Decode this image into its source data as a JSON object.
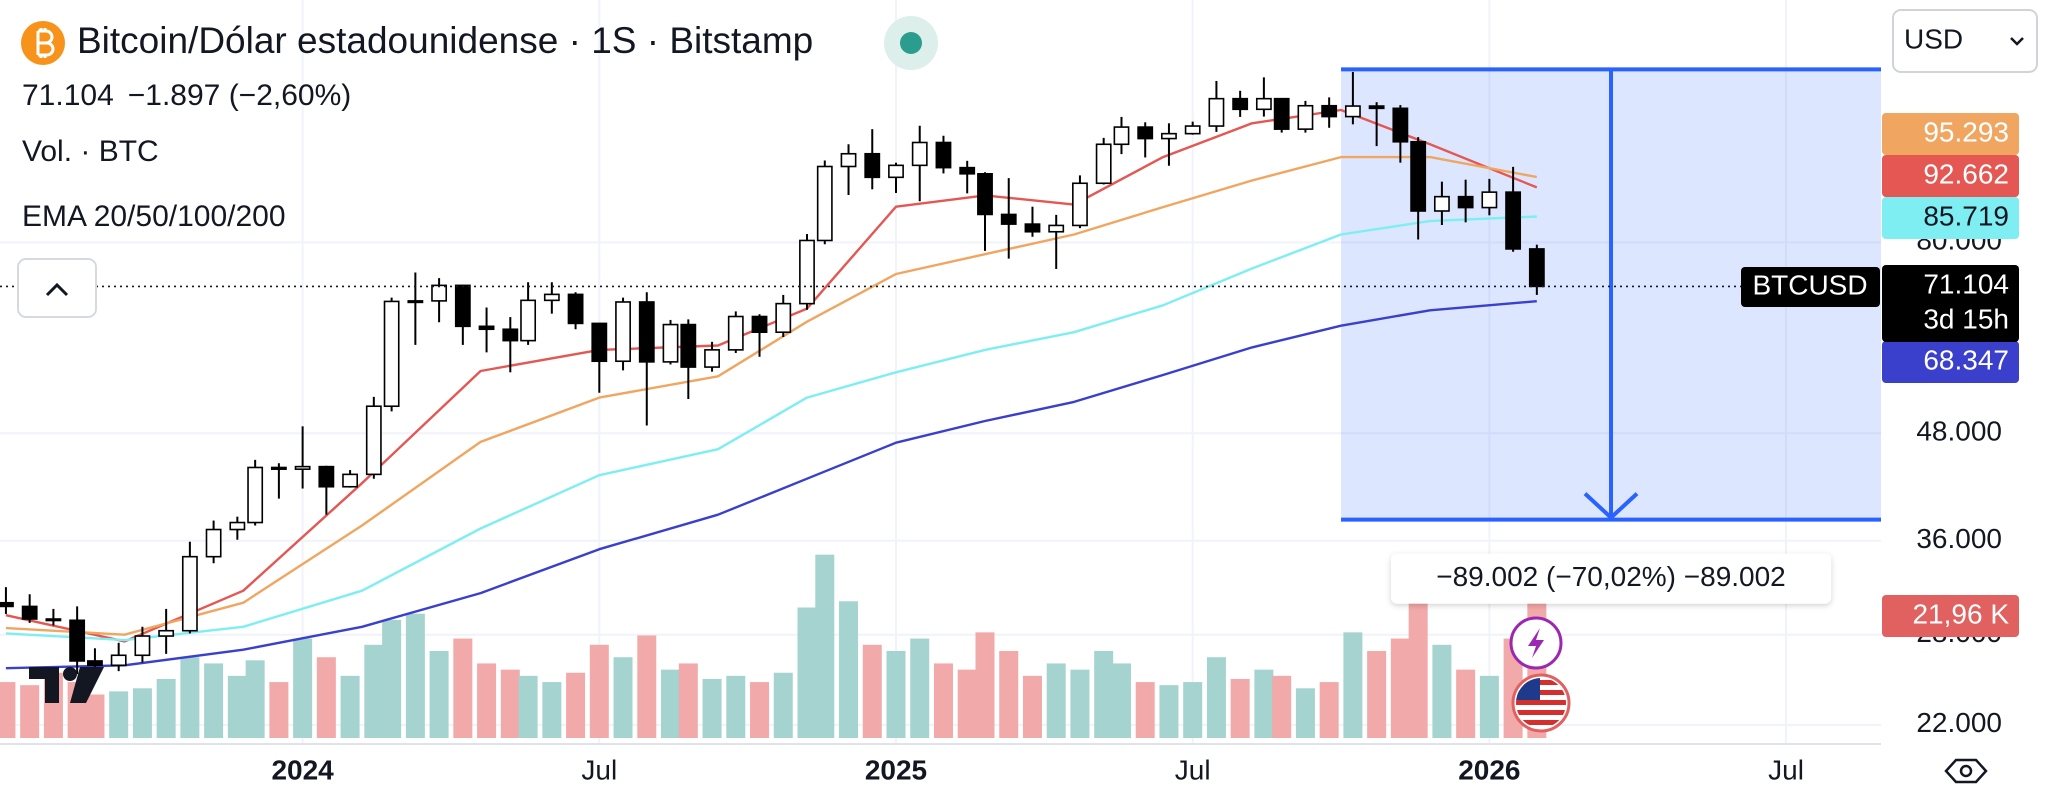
{
  "chart_data": {
    "type": "candlestick",
    "title": "Bitcoin/Dólar estadounidense · 1S · Bitstamp",
    "last_price_label": "71.104",
    "change_label": "−1.897 (−2,60%)",
    "volume_title": "Vol. · BTC",
    "indicator_title": "EMA 20/50/100/200",
    "currency": "USD",
    "symbol": "BTCUSD",
    "countdown": "3d 15h",
    "x": [
      2023.5,
      2023.54,
      2023.58,
      2023.62,
      2023.65,
      2023.69,
      2023.73,
      2023.77,
      2023.81,
      2023.85,
      2023.89,
      2023.92,
      2023.96,
      2024,
      2024.04,
      2024.08,
      2024.12,
      2024.15,
      2024.19,
      2024.23,
      2024.27,
      2024.31,
      2024.35,
      2024.38,
      2024.42,
      2024.46,
      2024.5,
      2024.54,
      2024.58,
      2024.62,
      2024.65,
      2024.69,
      2024.73,
      2024.77,
      2024.81,
      2024.85,
      2024.88,
      2024.92,
      2024.96,
      2025,
      2025.04,
      2025.08,
      2025.12,
      2025.15,
      2025.19,
      2025.23,
      2025.27,
      2025.31,
      2025.35,
      2025.38,
      2025.42,
      2025.46,
      2025.5,
      2025.54,
      2025.58,
      2025.62,
      2025.65,
      2025.69,
      2025.73,
      2025.77,
      2025.81,
      2025.85,
      2025.88,
      2025.92,
      2025.96,
      2026,
      2026.04,
      2026.08
    ],
    "open": [
      30500,
      30200,
      29200,
      29100,
      26100,
      25800,
      26500,
      27900,
      28300,
      34500,
      37100,
      37800,
      43800,
      43600,
      43900,
      41600,
      43000,
      51600,
      68300,
      68400,
      71300,
      63900,
      63400,
      61500,
      68500,
      69600,
      64400,
      58200,
      68200,
      58100,
      64200,
      57300,
      60000,
      65600,
      62900,
      67900,
      80400,
      98000,
      101400,
      95200,
      98300,
      104500,
      97700,
      96100,
      86200,
      84000,
      82300,
      83700,
      93700,
      104000,
      108900,
      105600,
      107000,
      109200,
      117500,
      114200,
      117500,
      108300,
      115300,
      112000,
      115200,
      114500,
      104700,
      87000,
      90400,
      87800,
      91500,
      78600
    ],
    "high": [
      31800,
      31200,
      30000,
      30200,
      27000,
      27400,
      28600,
      30000,
      35900,
      38000,
      38400,
      44700,
      44300,
      48900,
      44000,
      43500,
      52900,
      69000,
      73800,
      72700,
      71400,
      67200,
      65500,
      71900,
      71900,
      70000,
      64500,
      69000,
      70000,
      65000,
      65100,
      61300,
      66500,
      66000,
      69500,
      81800,
      99600,
      104000,
      108300,
      99000,
      109300,
      106400,
      99500,
      96500,
      95000,
      88000,
      86100,
      95700,
      105800,
      111900,
      110300,
      110000,
      110500,
      123200,
      120000,
      124400,
      117600,
      116800,
      117900,
      126200,
      116400,
      115500,
      106000,
      94100,
      94600,
      94800,
      97900,
      79500
    ],
    "low": [
      29600,
      28900,
      28700,
      25200,
      25300,
      25400,
      26000,
      26600,
      28100,
      33900,
      36100,
      37500,
      40300,
      41400,
      38600,
      41500,
      42500,
      50900,
      60800,
      64600,
      60800,
      59600,
      56500,
      60800,
      66100,
      63400,
      53500,
      56800,
      49000,
      57700,
      52600,
      56600,
      59500,
      58900,
      62100,
      66800,
      79600,
      90800,
      92200,
      91300,
      89300,
      96200,
      91200,
      78200,
      76600,
      81200,
      74500,
      83100,
      93400,
      101300,
      100400,
      98200,
      106700,
      107500,
      111900,
      112000,
      107300,
      107300,
      108700,
      109700,
      103500,
      99000,
      80600,
      83800,
      84400,
      86000,
      78000,
      69500
    ],
    "close": [
      30200,
      29200,
      29100,
      26100,
      25800,
      26500,
      27900,
      28300,
      34500,
      37100,
      37800,
      43800,
      43600,
      43900,
      41600,
      43000,
      51600,
      68300,
      68400,
      71300,
      63900,
      63400,
      61500,
      68500,
      69600,
      64400,
      58200,
      68200,
      58100,
      64200,
      57300,
      60000,
      65600,
      62900,
      67900,
      80400,
      98000,
      101400,
      95200,
      98300,
      104500,
      97700,
      96100,
      86200,
      84000,
      82300,
      83700,
      93700,
      104000,
      108900,
      105600,
      107000,
      109200,
      117500,
      114200,
      117500,
      108300,
      115300,
      112000,
      115200,
      114500,
      104700,
      87000,
      90400,
      87800,
      91500,
      78600,
      71104
    ],
    "volume": [
      9000,
      8500,
      10500,
      9000,
      7000,
      7500,
      8000,
      9500,
      13000,
      12000,
      10000,
      12500,
      9000,
      16000,
      13000,
      10000,
      15000,
      19000,
      20000,
      14000,
      16000,
      12000,
      11000,
      10000,
      9000,
      10500,
      15000,
      13000,
      16500,
      11000,
      12000,
      9500,
      10000,
      9000,
      10500,
      21000,
      29500,
      22000,
      15000,
      14000,
      16000,
      12000,
      11000,
      17000,
      14000,
      10000,
      12000,
      11000,
      14000,
      12000,
      9000,
      8500,
      9000,
      13000,
      9500,
      11000,
      10000,
      8000,
      9000,
      17000,
      14000,
      16000,
      22000,
      15000,
      11000,
      10000,
      16000,
      21960
    ],
    "volume_label": "21,96 K",
    "colors": {
      "up_body": "#ffffff",
      "down_body": "#000000",
      "wick": "#000000",
      "volume_up": "#a5d3cf",
      "volume_down": "#f2a9a9",
      "volume_box": "#e0615f"
    },
    "series": [
      {
        "color": "#e45752",
        "x": [
          2023.5,
          2023.7,
          2023.9,
          2024.1,
          2024.3,
          2024.5,
          2024.7,
          2024.85,
          2025,
          2025.15,
          2025.3,
          2025.45,
          2025.6,
          2025.75,
          2025.9,
          2026.08
        ],
        "values": [
          29500,
          27500,
          31500,
          42000,
          56700,
          60000,
          60700,
          67000,
          88000,
          90700,
          88500,
          100500,
          110000,
          114000,
          104000,
          92662
        ],
        "value_label": "92.662"
      },
      {
        "color": "#f0a660",
        "x": [
          2023.5,
          2023.7,
          2023.9,
          2024.1,
          2024.3,
          2024.5,
          2024.7,
          2024.85,
          2025,
          2025.15,
          2025.3,
          2025.45,
          2025.6,
          2025.75,
          2025.9,
          2026.08
        ],
        "values": [
          28500,
          28000,
          30500,
          37500,
          46900,
          52800,
          55900,
          64700,
          73500,
          77500,
          81700,
          87900,
          94400,
          100500,
          100500,
          95293
        ],
        "value_label": "95.293"
      },
      {
        "color": "#7eeef3",
        "x": [
          2023.5,
          2023.7,
          2023.9,
          2024.1,
          2024.3,
          2024.5,
          2024.7,
          2024.85,
          2025,
          2025.15,
          2025.3,
          2025.45,
          2025.6,
          2025.75,
          2025.9,
          2026.08
        ],
        "values": [
          28100,
          27600,
          28600,
          31500,
          37200,
          42900,
          46000,
          52800,
          56500,
          60000,
          62900,
          67600,
          74600,
          81700,
          84700,
          85719
        ],
        "value_label": "85.719"
      },
      {
        "color": "#3a3fcc",
        "x": [
          2023.5,
          2023.7,
          2023.9,
          2024.1,
          2024.3,
          2024.5,
          2024.7,
          2024.85,
          2025,
          2025.15,
          2025.3,
          2025.45,
          2025.6,
          2025.75,
          2025.9,
          2026.08
        ],
        "values": [
          25600,
          25800,
          26900,
          28600,
          31300,
          35200,
          38600,
          42500,
          46800,
          49600,
          52200,
          56100,
          60400,
          64000,
          66700,
          68347
        ],
        "value_label": "68.347"
      }
    ],
    "measure": {
      "x": [
        2025.75,
        2026.66
      ],
      "from": 127100,
      "to": 38098,
      "label": "−89.002 (−70,02%) −89.002",
      "color": "#2962ff",
      "fill": "rgba(41,98,255,0.16)"
    },
    "xlim": [
      2023.49,
      2026.66
    ],
    "xticks": [
      2024,
      {
        "value": 2024.5,
        "label": "Jul"
      },
      2025,
      {
        "value": 2025.5,
        "label": "Jul"
      },
      2026,
      {
        "value": 2026.5,
        "label": "Jul"
      }
    ],
    "ylim": [
      20900,
      153000
    ],
    "yticks": [
      {
        "value": 22000,
        "label": "22.000"
      },
      {
        "value": 28000,
        "label": "28.000"
      },
      {
        "value": 36000,
        "label": "36.000"
      },
      {
        "value": 48000,
        "label": "48.000"
      },
      {
        "value": 80000,
        "label": "80.000"
      }
    ],
    "log_y": true,
    "volume_ylim": [
      0,
      42000
    ],
    "grid": true
  }
}
